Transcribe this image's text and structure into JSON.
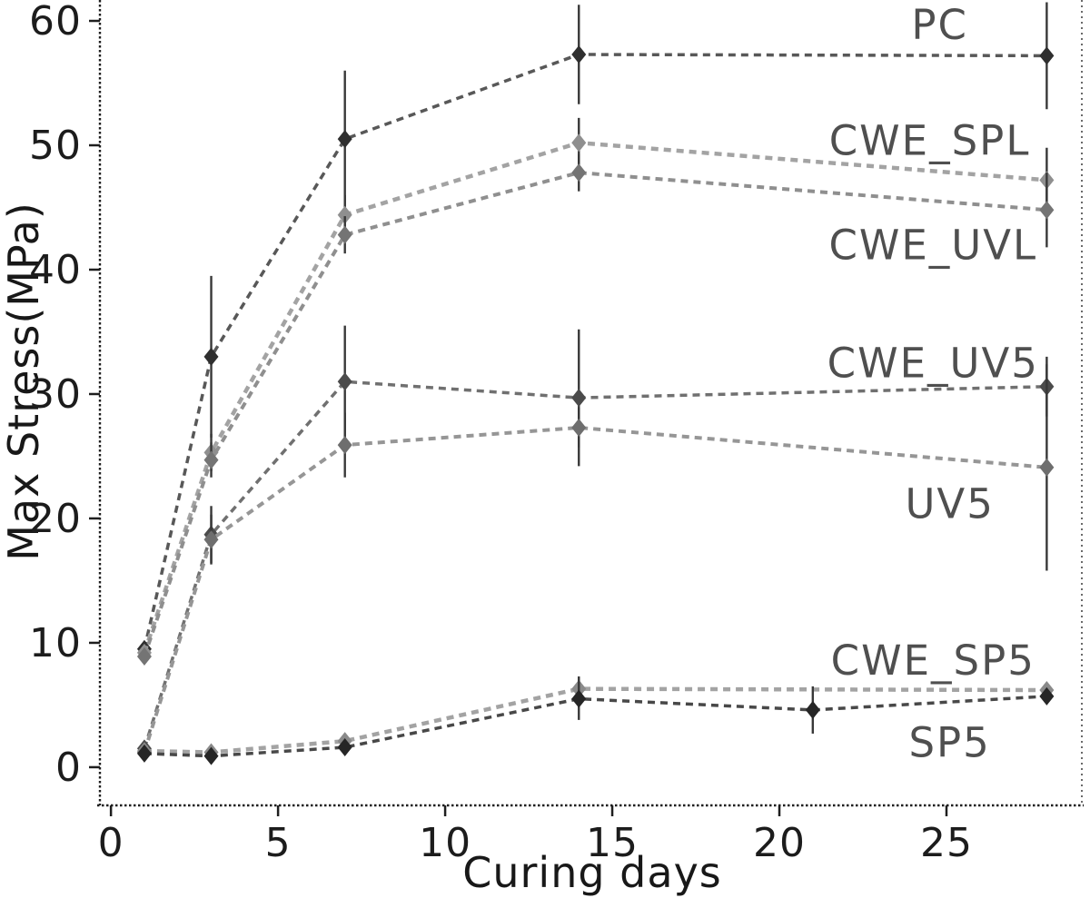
{
  "figure": {
    "background": "#ffffff",
    "axis_color": "#1e1e1e",
    "border_color": "#6a6a6a",
    "error_bar_color": "#383838",
    "series_label_color": "#4f4f4f"
  },
  "chart_data": {
    "type": "line",
    "title": "",
    "xlabel": "Curing days",
    "ylabel": "Max Stress(MPa)",
    "xticks": [
      0,
      5,
      10,
      15,
      20,
      25
    ],
    "yticks": [
      0,
      10,
      20,
      30,
      40,
      50,
      60
    ],
    "xlim": [
      -0.33,
      29.05
    ],
    "ylim": [
      -3.07,
      61.68
    ],
    "grid": false,
    "legend_position": "inline-right-annotations",
    "marker": "diamond",
    "linestyle": "dashed",
    "series": [
      {
        "name": "PC",
        "x": [
          1,
          3,
          7,
          14,
          28
        ],
        "y": [
          9.5,
          33.0,
          50.5,
          57.3,
          57.2
        ],
        "err": [
          0.6,
          6.5,
          5.5,
          4.0,
          4.3
        ],
        "color": "#585858",
        "marker_color": "#2f2f2f",
        "line_width": 3.5,
        "label": {
          "text": "PC",
          "at": [
            24.8,
            59.7
          ]
        }
      },
      {
        "name": "CWE_SPL",
        "x": [
          1,
          3,
          7,
          14,
          28
        ],
        "y": [
          9.2,
          25.3,
          44.4,
          50.2,
          47.2
        ],
        "err": [
          0.5,
          1.5,
          1.6,
          2.0,
          2.6
        ],
        "color": "#a3a3a3",
        "marker_color": "#8f8f8f",
        "line_width": 4.5,
        "label": {
          "text": "CWE_SPL",
          "at": [
            24.5,
            50.4
          ]
        }
      },
      {
        "name": "CWE_UVL",
        "x": [
          1,
          3,
          7,
          14,
          28
        ],
        "y": [
          8.9,
          24.7,
          42.8,
          47.8,
          44.8
        ],
        "err": [
          0.5,
          1.4,
          1.5,
          1.5,
          3.0
        ],
        "color": "#8f8f8f",
        "marker_color": "#747474",
        "line_width": 4.0,
        "label": {
          "text": "CWE_UVL",
          "at": [
            24.6,
            42.0
          ]
        }
      },
      {
        "name": "CWE_UV5",
        "x": [
          1,
          3,
          7,
          14,
          28
        ],
        "y": [
          1.5,
          18.7,
          31.0,
          29.7,
          30.6
        ],
        "err": [
          0.4,
          2.3,
          4.5,
          5.5,
          2.4
        ],
        "color": "#707070",
        "marker_color": "#4b4b4b",
        "line_width": 3.5,
        "label": {
          "text": "CWE_UV5",
          "at": [
            24.6,
            32.5
          ]
        }
      },
      {
        "name": "UV5",
        "x": [
          1,
          3,
          7,
          14,
          28
        ],
        "y": [
          1.2,
          18.3,
          25.9,
          27.3,
          24.1
        ],
        "err": [
          0.4,
          2.0,
          2.6,
          1.6,
          8.3
        ],
        "color": "#969696",
        "marker_color": "#6e6e6e",
        "line_width": 4.0,
        "label": {
          "text": "UV5",
          "at": [
            25.1,
            21.2
          ]
        }
      },
      {
        "name": "CWE_SP5",
        "x": [
          1,
          3,
          7,
          14,
          28
        ],
        "y": [
          1.3,
          1.2,
          2.1,
          6.3,
          6.2
        ],
        "err": [
          0.3,
          0.3,
          0.6,
          1.0,
          0.5
        ],
        "color": "#a3a3a3",
        "marker_color": "#8a8a8a",
        "line_width": 4.5,
        "label": {
          "text": "CWE_SP5",
          "at": [
            24.6,
            8.6
          ]
        }
      },
      {
        "name": "SP5",
        "x": [
          1,
          3,
          7,
          14,
          21,
          28
        ],
        "y": [
          1.1,
          0.9,
          1.6,
          5.5,
          4.6,
          5.7
        ],
        "err": [
          0.3,
          0.3,
          0.6,
          1.7,
          1.9,
          0.5
        ],
        "color": "#484848",
        "marker_color": "#262626",
        "line_width": 3.5,
        "label": {
          "text": "SP5",
          "at": [
            25.1,
            2.0
          ]
        }
      }
    ]
  }
}
